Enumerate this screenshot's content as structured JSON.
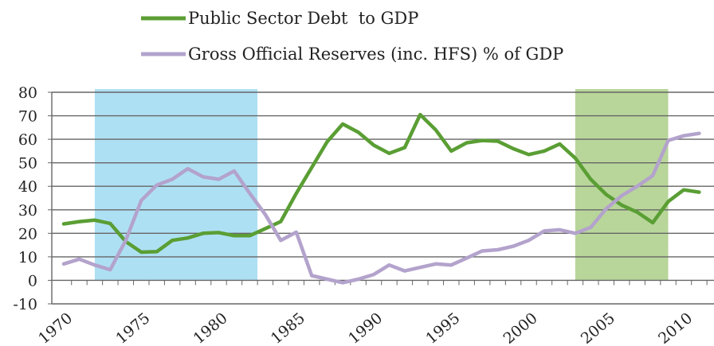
{
  "chart_data": {
    "type": "line",
    "title": "",
    "xlabel": "",
    "ylabel": "",
    "ylim": [
      -10,
      80
    ],
    "xlim": [
      1970,
      2011
    ],
    "y_ticks": [
      "80",
      "70",
      "60",
      "50",
      "40",
      "30",
      "20",
      "10",
      "0",
      "-10"
    ],
    "x_ticks": [
      "1970",
      "1975",
      "1980",
      "1985",
      "1990",
      "1995",
      "2000",
      "2005",
      "2010"
    ],
    "grid": true,
    "legend_position": "top",
    "shaded_periods": [
      {
        "from": 1972,
        "to": 1982.5,
        "color": "#aee0f3"
      },
      {
        "from": 2003,
        "to": 2009,
        "color": "#b8d69a"
      }
    ],
    "series": [
      {
        "name": "Public Sector Debt  to GDP",
        "color": "#5a9e34",
        "x": [
          1970,
          1971,
          1972,
          1973,
          1974,
          1975,
          1976,
          1977,
          1978,
          1979,
          1980,
          1981,
          1982,
          1983,
          1984,
          1985,
          1986,
          1987,
          1988,
          1989,
          1990,
          1991,
          1992,
          1993,
          1994,
          1995,
          1996,
          1997,
          1998,
          1999,
          2000,
          2001,
          2002,
          2003,
          2004,
          2005,
          2006,
          2007,
          2008,
          2009,
          2010,
          2011
        ],
        "values": [
          24,
          25,
          25.6,
          24.2,
          16.5,
          12,
          12.2,
          17,
          18,
          20,
          20.3,
          19,
          19,
          22,
          25,
          37,
          48,
          59,
          66.5,
          63,
          57.5,
          54,
          56.5,
          70.5,
          64,
          55,
          58.5,
          59.5,
          59.2,
          56,
          53.5,
          55,
          58,
          52,
          43,
          36.5,
          32,
          29,
          24.5,
          33.5,
          38.5,
          37.5
        ]
      },
      {
        "name": "Gross Official Reserves (inc. HFS) % of GDP",
        "color": "#b3a3cc",
        "x": [
          1970,
          1971,
          1972,
          1973,
          1974,
          1975,
          1976,
          1977,
          1978,
          1979,
          1980,
          1981,
          1982,
          1983,
          1984,
          1985,
          1986,
          1987,
          1988,
          1989,
          1990,
          1991,
          1992,
          1993,
          1994,
          1995,
          1996,
          1997,
          1998,
          1999,
          2000,
          2001,
          2002,
          2003,
          2004,
          2005,
          2006,
          2007,
          2008,
          2009,
          2010,
          2011
        ],
        "values": [
          7,
          9,
          6.5,
          4.5,
          17,
          34,
          40.5,
          43,
          47.5,
          44,
          43,
          46.5,
          37,
          28,
          17,
          20.5,
          2,
          0.5,
          -1,
          0.5,
          2.5,
          6.5,
          4,
          5.5,
          7,
          6.5,
          9.5,
          12.5,
          13,
          14.5,
          17,
          21,
          21.5,
          20,
          22.5,
          30.5,
          36,
          40,
          44.5,
          59.5,
          61.5,
          62.5
        ]
      }
    ]
  }
}
